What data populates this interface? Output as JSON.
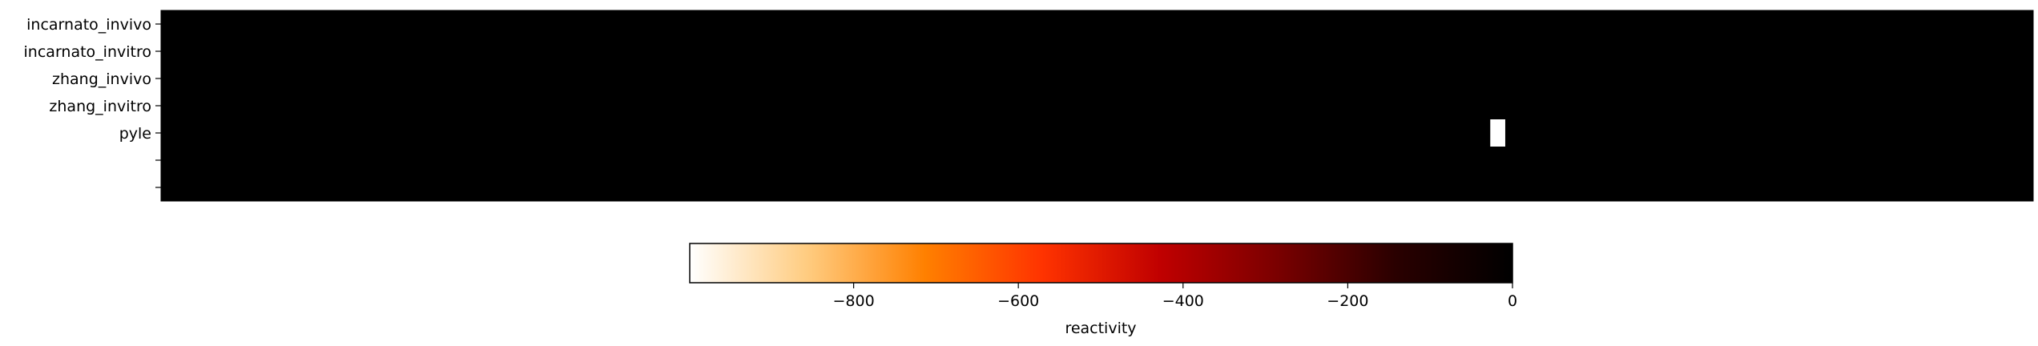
{
  "chart_data": {
    "type": "heatmap",
    "rows": [
      "incarnato_invivo",
      "incarnato_invitro",
      "zhang_invivo",
      "zhang_invitro",
      "pyle",
      "",
      ""
    ],
    "n_columns": 100,
    "background_value": 0,
    "highlight_cells": [
      {
        "row": 4,
        "col": 71,
        "value": -999
      }
    ],
    "colormap": "gist_heat_r",
    "colorbar": {
      "label": "reactivity",
      "min": -999,
      "max": 0,
      "ticks": [
        -800,
        -600,
        -400,
        -200,
        0
      ],
      "tick_labels": [
        "−800",
        "−600",
        "−400",
        "−200",
        "0"
      ],
      "gradient_colors": [
        "#ffffff",
        "#ffcc80",
        "#ff8000",
        "#ff3300",
        "#c00000",
        "#7a0000",
        "#2a0000",
        "#000000"
      ]
    }
  }
}
